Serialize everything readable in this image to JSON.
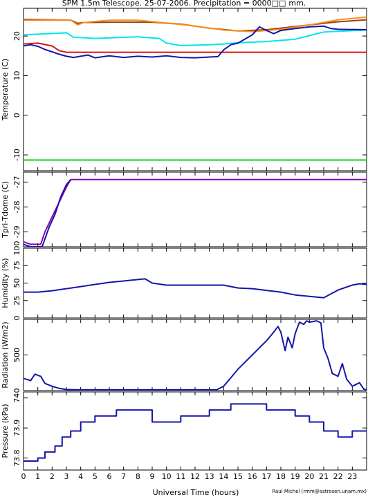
{
  "chart_data": {
    "type": "line",
    "title": "SPM 1.5m Telescope. 25-07-2006. Precipitation = 0000",
    "title_suffix": "mm.",
    "xlabel": "Universal Time (hours)",
    "credit": "Raul Michel (rmm@astrosen.unam.mx)",
    "xlim": [
      0,
      24
    ],
    "x_ticks": [
      "0",
      "1",
      "2",
      "3",
      "4",
      "5",
      "6",
      "7",
      "8",
      "9",
      "10",
      "11",
      "12",
      "13",
      "14",
      "15",
      "16",
      "17",
      "18",
      "19",
      "20",
      "21",
      "22",
      "23"
    ],
    "panels": [
      {
        "id": "temperature",
        "ylabel": "Temperature (C)",
        "ylim": [
          -14,
          27
        ],
        "y_ticks": [
          "-10",
          "0",
          "10",
          "20"
        ],
        "series": [
          {
            "color": "#8b4513",
            "points": [
              [
                0,
                24.2
              ],
              [
                3.3,
                24.0
              ],
              [
                3.8,
                23.2
              ],
              [
                4.2,
                23.4
              ],
              [
                6,
                23.5
              ],
              [
                9,
                23.5
              ],
              [
                11,
                23.0
              ],
              [
                13,
                22.0
              ],
              [
                15,
                21.3
              ],
              [
                17,
                21.6
              ],
              [
                19,
                22.4
              ],
              [
                21,
                23.2
              ],
              [
                22,
                23.6
              ],
              [
                24,
                24.1
              ]
            ]
          },
          {
            "color": "#ff8c1a",
            "points": [
              [
                0,
                24.0
              ],
              [
                3.3,
                24.0
              ],
              [
                3.8,
                22.8
              ],
              [
                4.2,
                23.4
              ],
              [
                6,
                24.0
              ],
              [
                8,
                24.0
              ],
              [
                10,
                23.3
              ],
              [
                12,
                22.5
              ],
              [
                14,
                21.5
              ],
              [
                16,
                21.1
              ],
              [
                18,
                21.7
              ],
              [
                20,
                22.8
              ],
              [
                22,
                24.1
              ],
              [
                24,
                24.8
              ]
            ]
          },
          {
            "color": "#00e5ee",
            "points": [
              [
                0,
                20.3
              ],
              [
                3,
                20.8
              ],
              [
                3.5,
                19.7
              ],
              [
                5,
                19.4
              ],
              [
                8,
                19.8
              ],
              [
                9.5,
                19.4
              ],
              [
                10,
                18.2
              ],
              [
                11,
                17.6
              ],
              [
                13,
                17.8
              ],
              [
                14,
                18.0
              ],
              [
                15,
                18.3
              ],
              [
                17,
                18.6
              ],
              [
                19,
                19.2
              ],
              [
                20,
                20.1
              ],
              [
                21,
                21.0
              ],
              [
                22,
                21.2
              ],
              [
                24,
                21.5
              ]
            ]
          },
          {
            "color": "#dd1111",
            "points": [
              [
                0,
                18.0
              ],
              [
                1,
                18.2
              ],
              [
                2,
                17.5
              ],
              [
                2.5,
                16.3
              ],
              [
                3,
                15.9
              ],
              [
                24,
                15.9
              ]
            ]
          },
          {
            "color": "#1515aa",
            "points": [
              [
                0,
                17.5
              ],
              [
                0.5,
                17.8
              ],
              [
                1,
                17.4
              ],
              [
                1.5,
                16.6
              ],
              [
                2,
                16.0
              ],
              [
                2.5,
                15.4
              ],
              [
                3,
                14.9
              ],
              [
                3.5,
                14.6
              ],
              [
                4.5,
                15.2
              ],
              [
                5,
                14.5
              ],
              [
                6,
                15.0
              ],
              [
                7,
                14.6
              ],
              [
                8,
                14.9
              ],
              [
                9,
                14.7
              ],
              [
                10,
                15.0
              ],
              [
                11,
                14.6
              ],
              [
                12,
                14.5
              ],
              [
                13,
                14.7
              ],
              [
                13.6,
                14.8
              ],
              [
                14,
                16.5
              ],
              [
                14.5,
                17.8
              ],
              [
                15,
                18.2
              ],
              [
                16,
                20.3
              ],
              [
                16.5,
                22.3
              ],
              [
                17,
                21.4
              ],
              [
                17.5,
                20.6
              ],
              [
                18,
                21.4
              ],
              [
                19,
                21.9
              ],
              [
                19.5,
                22.1
              ],
              [
                20,
                22.3
              ],
              [
                20.5,
                22.4
              ],
              [
                21,
                22.5
              ],
              [
                21.5,
                21.9
              ],
              [
                22,
                21.7
              ],
              [
                24,
                21.6
              ]
            ]
          },
          {
            "color": "#11cc11",
            "points": [
              [
                0,
                -11.3
              ],
              [
                24,
                -11.3
              ]
            ]
          }
        ]
      },
      {
        "id": "tdiff",
        "ylabel": "Tpri-Tdome (C)",
        "ylim": [
          -29.6,
          -26.6
        ],
        "y_ticks": [
          "-29",
          "-28",
          "-27"
        ],
        "series": [
          {
            "color": "#8800aa",
            "points": [
              [
                0,
                -29.4
              ],
              [
                0.5,
                -29.5
              ],
              [
                1.2,
                -29.5
              ],
              [
                1.5,
                -29.0
              ],
              [
                2,
                -28.4
              ],
              [
                2.5,
                -27.8
              ],
              [
                3,
                -27.2
              ],
              [
                3.3,
                -26.9
              ],
              [
                24,
                -26.9
              ]
            ]
          },
          {
            "color": "#1515aa",
            "points": [
              [
                0,
                -29.5
              ],
              [
                0.5,
                -29.6
              ],
              [
                1.3,
                -29.6
              ],
              [
                1.8,
                -28.8
              ],
              [
                2.2,
                -28.3
              ],
              [
                2.6,
                -27.6
              ],
              [
                3,
                -27.1
              ],
              [
                3.3,
                -26.9
              ]
            ]
          }
        ]
      },
      {
        "id": "humidity",
        "ylabel": "Humidity (%)",
        "ylim": [
          0,
          100
        ],
        "y_ticks": [
          "0",
          "25",
          "50",
          "75",
          "100"
        ],
        "series": [
          {
            "color": "#1515aa",
            "points": [
              [
                0,
                37
              ],
              [
                1,
                37
              ],
              [
                2,
                39
              ],
              [
                3,
                42
              ],
              [
                4,
                45
              ],
              [
                5,
                48
              ],
              [
                6,
                51
              ],
              [
                7,
                53
              ],
              [
                8,
                55
              ],
              [
                8.5,
                56
              ],
              [
                9,
                50
              ],
              [
                10,
                47
              ],
              [
                12,
                47
              ],
              [
                14,
                47
              ],
              [
                15,
                43
              ],
              [
                16,
                42
              ],
              [
                18,
                37
              ],
              [
                19,
                33
              ],
              [
                20,
                31
              ],
              [
                21,
                29
              ],
              [
                22,
                40
              ],
              [
                23,
                47
              ],
              [
                23.5,
                49
              ],
              [
                24,
                48
              ]
            ]
          }
        ]
      },
      {
        "id": "radiation",
        "ylabel": "Radiation (W/m2)",
        "ylim": [
          0,
          1000
        ],
        "y_ticks": [
          "0",
          "500"
        ],
        "series": [
          {
            "color": "#1515aa",
            "points": [
              [
                0,
                170
              ],
              [
                0.5,
                140
              ],
              [
                0.8,
                230
              ],
              [
                1.2,
                200
              ],
              [
                1.5,
                100
              ],
              [
                2,
                60
              ],
              [
                2.5,
                30
              ],
              [
                3,
                15
              ],
              [
                4,
                10
              ],
              [
                13.5,
                10
              ],
              [
                14,
                60
              ],
              [
                14.5,
                180
              ],
              [
                15,
                300
              ],
              [
                16,
                500
              ],
              [
                17,
                700
              ],
              [
                17.5,
                820
              ],
              [
                17.8,
                900
              ],
              [
                18,
                820
              ],
              [
                18.3,
                560
              ],
              [
                18.5,
                750
              ],
              [
                18.8,
                600
              ],
              [
                19,
                800
              ],
              [
                19.3,
                960
              ],
              [
                19.6,
                930
              ],
              [
                19.8,
                980
              ],
              [
                20,
                960
              ],
              [
                20.5,
                980
              ],
              [
                20.8,
                950
              ],
              [
                21,
                600
              ],
              [
                21.3,
                450
              ],
              [
                21.6,
                240
              ],
              [
                22,
                200
              ],
              [
                22.3,
                380
              ],
              [
                22.6,
                160
              ],
              [
                23,
                60
              ],
              [
                23.5,
                110
              ],
              [
                23.8,
                20
              ],
              [
                24,
                10
              ]
            ]
          }
        ]
      },
      {
        "id": "pressure",
        "ylabel": "Pressure (kPa)",
        "ylim": [
          73.76,
          74.02
        ],
        "y_ticks": [
          "73.8",
          "73.9",
          "74"
        ],
        "series": [
          {
            "color": "#1515aa",
            "points": [
              [
                0,
                73.79
              ],
              [
                1,
                73.79
              ],
              [
                1,
                73.8
              ],
              [
                1.5,
                73.8
              ],
              [
                1.5,
                73.82
              ],
              [
                2.2,
                73.82
              ],
              [
                2.2,
                73.84
              ],
              [
                2.7,
                73.84
              ],
              [
                2.7,
                73.87
              ],
              [
                3.3,
                73.87
              ],
              [
                3.3,
                73.89
              ],
              [
                4,
                73.89
              ],
              [
                4,
                73.92
              ],
              [
                5,
                73.92
              ],
              [
                5,
                73.94
              ],
              [
                6.5,
                73.94
              ],
              [
                6.5,
                73.96
              ],
              [
                9,
                73.96
              ],
              [
                9,
                73.92
              ],
              [
                11,
                73.92
              ],
              [
                11,
                73.94
              ],
              [
                13,
                73.94
              ],
              [
                13,
                73.96
              ],
              [
                14.5,
                73.96
              ],
              [
                14.5,
                73.98
              ],
              [
                17,
                73.98
              ],
              [
                17,
                73.96
              ],
              [
                19,
                73.96
              ],
              [
                19,
                73.94
              ],
              [
                20,
                73.94
              ],
              [
                20,
                73.92
              ],
              [
                21,
                73.92
              ],
              [
                21,
                73.89
              ],
              [
                22,
                73.89
              ],
              [
                22,
                73.87
              ],
              [
                23,
                73.87
              ],
              [
                23,
                73.89
              ],
              [
                24,
                73.89
              ]
            ]
          }
        ]
      }
    ]
  }
}
